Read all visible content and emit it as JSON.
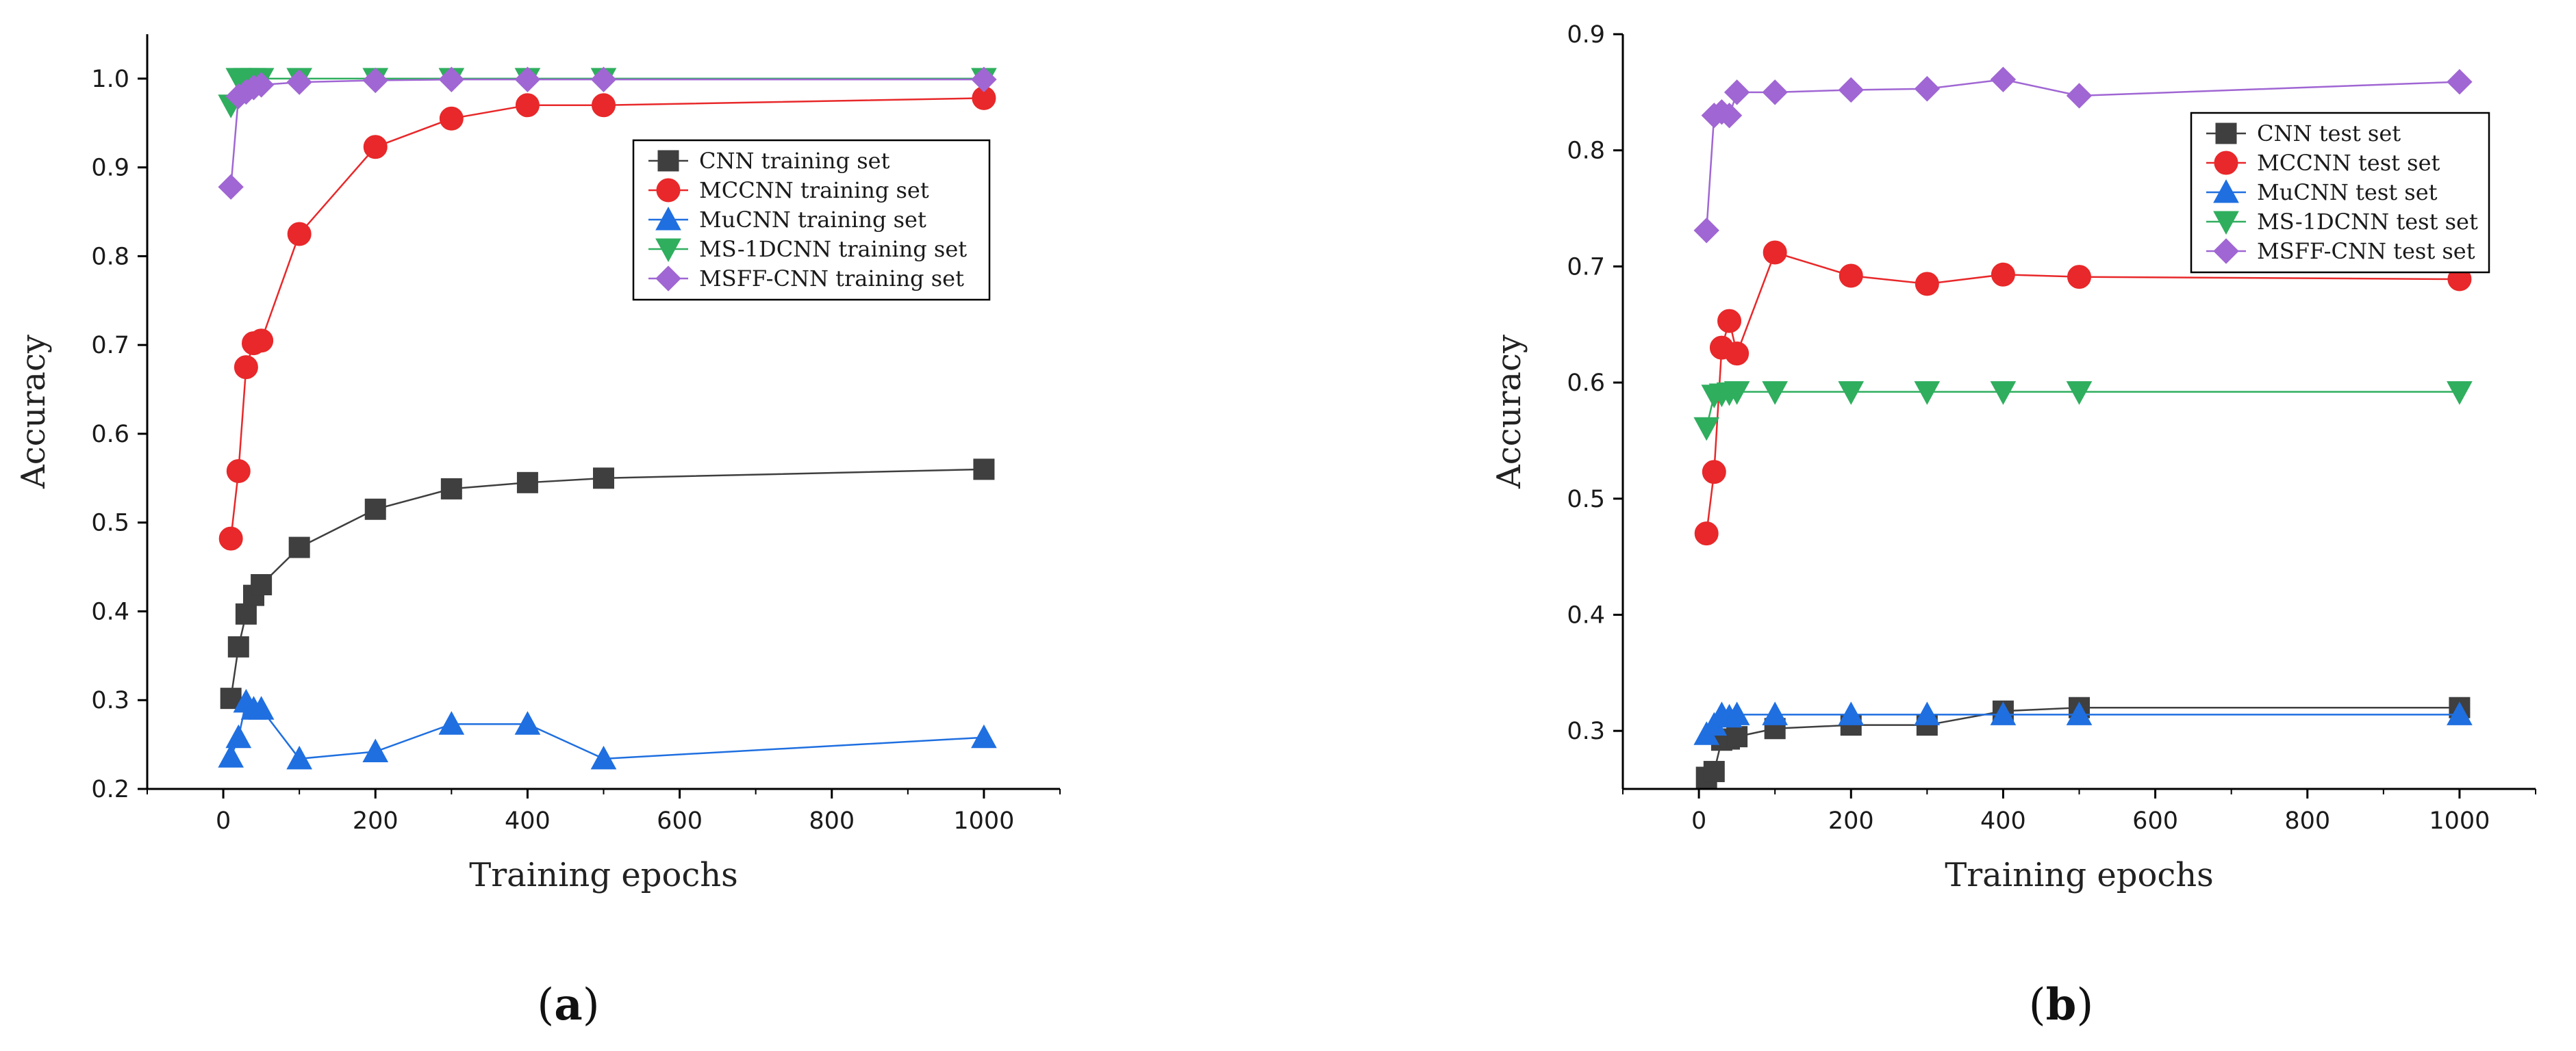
{
  "chart_data": [
    {
      "type": "line",
      "panel_label": "a",
      "xlabel": "Training epochs",
      "ylabel": "Accuracy",
      "xlim": [
        -100,
        1100
      ],
      "ylim": [
        0.2,
        1.05
      ],
      "xticks": [
        0,
        200,
        400,
        600,
        800,
        1000
      ],
      "yticks": [
        0.2,
        0.3,
        0.4,
        0.5,
        0.6,
        0.7,
        0.8,
        0.9,
        1.0
      ],
      "ytick_labels": [
        "0.2",
        "0.3",
        "0.4",
        "0.5",
        "0.6",
        "0.7",
        "0.8",
        "0.9",
        "1.0"
      ],
      "legend_position": "top-right",
      "series": [
        {
          "name": "CNN training set",
          "color": "#3f3f3f",
          "marker": "square",
          "x": [
            10,
            20,
            30,
            40,
            50,
            100,
            200,
            300,
            400,
            500,
            1000
          ],
          "y": [
            0.302,
            0.36,
            0.397,
            0.418,
            0.43,
            0.472,
            0.515,
            0.538,
            0.545,
            0.55,
            0.56
          ]
        },
        {
          "name": "MCCNN training set",
          "color": "#e8282a",
          "marker": "circle",
          "x": [
            10,
            20,
            30,
            40,
            50,
            100,
            200,
            300,
            400,
            500,
            1000
          ],
          "y": [
            0.482,
            0.558,
            0.675,
            0.702,
            0.705,
            0.825,
            0.923,
            0.955,
            0.97,
            0.97,
            0.978
          ]
        },
        {
          "name": "MuCNN training set",
          "color": "#1f6fe0",
          "marker": "triangle-up",
          "x": [
            10,
            20,
            30,
            40,
            50,
            100,
            200,
            300,
            400,
            500,
            1000
          ],
          "y": [
            0.236,
            0.258,
            0.298,
            0.29,
            0.29,
            0.234,
            0.242,
            0.273,
            0.273,
            0.234,
            0.258
          ]
        },
        {
          "name": "MS-1DCNN training set",
          "color": "#2fae5e",
          "marker": "triangle-down",
          "x": [
            10,
            20,
            30,
            40,
            50,
            100,
            200,
            300,
            400,
            500,
            1000
          ],
          "y": [
            0.97,
            1.0,
            1.0,
            1.0,
            1.0,
            1.0,
            1.0,
            1.0,
            1.0,
            1.0,
            1.0
          ]
        },
        {
          "name": "MSFF-CNN training set",
          "color": "#a066d3",
          "marker": "diamond",
          "x": [
            10,
            20,
            30,
            40,
            50,
            100,
            200,
            300,
            400,
            500,
            1000
          ],
          "y": [
            0.878,
            0.98,
            0.985,
            0.99,
            0.993,
            0.996,
            0.998,
            0.999,
            0.999,
            0.999,
            0.999
          ]
        }
      ]
    },
    {
      "type": "line",
      "panel_label": "b",
      "xlabel": "Training epochs",
      "ylabel": "Accuracy",
      "xlim": [
        -100,
        1100
      ],
      "ylim": [
        0.25,
        0.9
      ],
      "xticks": [
        0,
        200,
        400,
        600,
        800,
        1000
      ],
      "yticks": [
        0.3,
        0.4,
        0.5,
        0.6,
        0.7,
        0.8,
        0.9
      ],
      "ytick_labels": [
        "0.3",
        "0.4",
        "0.5",
        "0.6",
        "0.7",
        "0.8",
        "0.9"
      ],
      "legend_position": "top-right",
      "series": [
        {
          "name": "CNN test set",
          "color": "#3f3f3f",
          "marker": "square",
          "x": [
            10,
            20,
            30,
            40,
            50,
            100,
            200,
            300,
            400,
            500,
            1000
          ],
          "y": [
            0.26,
            0.265,
            0.292,
            0.293,
            0.295,
            0.302,
            0.305,
            0.305,
            0.317,
            0.32,
            0.32
          ]
        },
        {
          "name": "MCCNN test set",
          "color": "#e8282a",
          "marker": "circle",
          "x": [
            10,
            20,
            30,
            40,
            50,
            100,
            200,
            300,
            400,
            500,
            1000
          ],
          "y": [
            0.47,
            0.523,
            0.63,
            0.653,
            0.625,
            0.712,
            0.692,
            0.685,
            0.693,
            0.691,
            0.689
          ]
        },
        {
          "name": "MuCNN test set",
          "color": "#1f6fe0",
          "marker": "triangle-up",
          "x": [
            10,
            20,
            30,
            40,
            50,
            100,
            200,
            300,
            400,
            500,
            1000
          ],
          "y": [
            0.297,
            0.305,
            0.314,
            0.312,
            0.314,
            0.314,
            0.314,
            0.314,
            0.314,
            0.314,
            0.314
          ]
        },
        {
          "name": "MS-1DCNN test set",
          "color": "#2fae5e",
          "marker": "triangle-down",
          "x": [
            10,
            20,
            30,
            40,
            50,
            100,
            200,
            300,
            400,
            500,
            1000
          ],
          "y": [
            0.561,
            0.589,
            0.59,
            0.591,
            0.592,
            0.592,
            0.592,
            0.592,
            0.592,
            0.592,
            0.592
          ]
        },
        {
          "name": "MSFF-CNN test set",
          "color": "#a066d3",
          "marker": "diamond",
          "x": [
            10,
            20,
            30,
            40,
            50,
            100,
            200,
            300,
            400,
            500,
            1000
          ],
          "y": [
            0.731,
            0.83,
            0.833,
            0.83,
            0.85,
            0.85,
            0.852,
            0.853,
            0.861,
            0.847,
            0.859
          ]
        }
      ]
    }
  ]
}
